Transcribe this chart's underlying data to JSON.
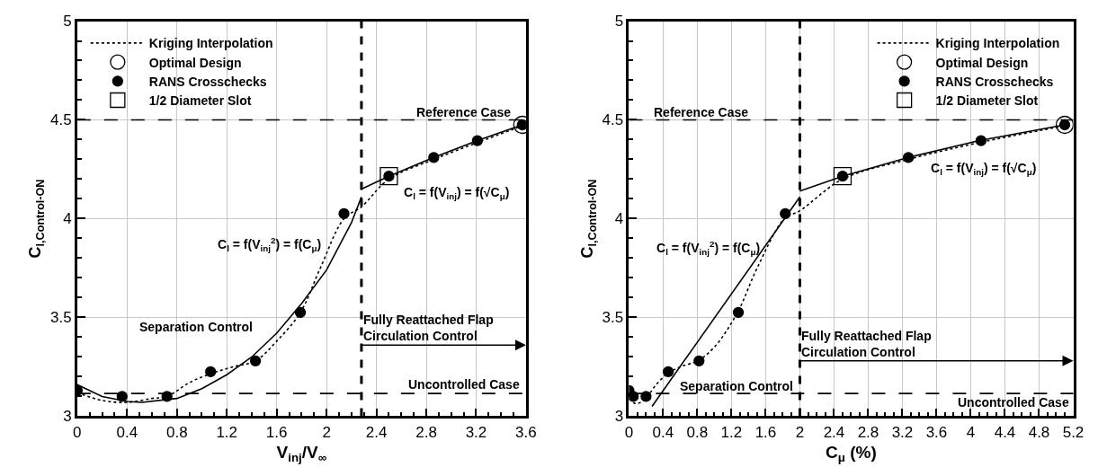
{
  "chart_data": [
    {
      "type": "line",
      "xlabel": "V$_{inj}$/V$_{∞}$",
      "ylabel": "C$_{l,Control-ON}$",
      "xlim": [
        0,
        3.6
      ],
      "xticks": [
        0,
        0.4,
        0.8,
        1.2,
        1.6,
        2,
        2.4,
        2.8,
        3.2,
        3.6
      ],
      "ylim": [
        3,
        5
      ],
      "yticks": [
        3,
        3.5,
        4,
        4.5,
        5
      ],
      "grid": true,
      "legend": "top left",
      "series": [
        {
          "name": "Kriging Interpolation",
          "line_style": "dotted",
          "color": "#000000",
          "x": [
            0,
            0.2,
            0.4,
            0.6,
            0.72,
            0.9,
            1.07,
            1.25,
            1.43,
            1.6,
            1.79,
            1.95,
            2.14,
            2.28,
            2.5,
            2.86,
            3.21,
            3.57
          ],
          "values": [
            3.12,
            3.08,
            3.07,
            3.09,
            3.1,
            3.17,
            3.215,
            3.25,
            3.28,
            3.38,
            3.525,
            3.75,
            4.0,
            4.06,
            4.2,
            4.3,
            4.385,
            4.47
          ]
        },
        {
          "name": "Optimal Design",
          "type": "scatter",
          "marker": "circle-open",
          "color": "#000000",
          "x": [
            3.57
          ],
          "values": [
            4.475
          ]
        },
        {
          "name": "RANS Crosschecks",
          "type": "scatter",
          "marker": "circle",
          "color": "#000000",
          "x": [
            0,
            0.36,
            0.72,
            1.07,
            1.43,
            1.79,
            2.14,
            2.5,
            2.86,
            3.21,
            3.57
          ],
          "values": [
            3.13,
            3.1,
            3.1,
            3.225,
            3.28,
            3.525,
            4.025,
            4.215,
            4.31,
            4.395,
            4.475
          ]
        },
        {
          "name": "1/2 Diameter Slot",
          "type": "scatter",
          "marker": "square-open",
          "color": "#000000",
          "x": [
            2.5
          ],
          "values": [
            4.215
          ]
        },
        {
          "line_style": "solid",
          "color": "#000000",
          "x": [
            0,
            0.2,
            0.4,
            0.52,
            0.8,
            1.0,
            1.2,
            1.4,
            1.6,
            1.8,
            2.0,
            2.2,
            2.28
          ],
          "values": [
            3.16,
            3.1,
            3.075,
            3.07,
            3.09,
            3.14,
            3.21,
            3.3,
            3.42,
            3.57,
            3.74,
            3.98,
            4.11
          ]
        },
        {
          "line_style": "solid",
          "color": "#000000",
          "x": [
            2.28,
            2.5,
            2.86,
            3.21,
            3.57
          ],
          "values": [
            4.15,
            4.215,
            4.31,
            4.395,
            4.475
          ]
        }
      ],
      "ref_lines": [
        {
          "axis": "y",
          "value": 4.5,
          "line_style": "dashed",
          "color": "#000000"
        },
        {
          "axis": "y",
          "value": 3.115,
          "line_style": "dashed",
          "color": "#000000"
        },
        {
          "axis": "x",
          "value": 2.28,
          "line_style": "dashed",
          "color": "#000000"
        }
      ],
      "annotations": [
        "Reference Case",
        "Uncontrolled Case",
        "Separation Control",
        "C$_{l}$ = f(V$_{inj}$$^{2}$) = f(C$_{μ}$)",
        "C$_{l}$ = f(V$_{inj}$) = f(√C$_{μ}$)",
        "Fully Reattached Flap\nCirculation Control"
      ]
    },
    {
      "type": "line",
      "xlabel": "C$_{μ}$ (%)",
      "ylabel": "C$_{l,Control-ON}$",
      "xlim": [
        0,
        5.2
      ],
      "xticks": [
        0,
        0.4,
        0.8,
        1.2,
        1.6,
        2,
        2.4,
        2.8,
        3.2,
        3.6,
        4,
        4.4,
        4.8,
        5.2
      ],
      "ylim": [
        3,
        5
      ],
      "yticks": [
        3,
        3.5,
        4,
        4.5,
        5
      ],
      "grid": true,
      "legend": "top right",
      "series": [
        {
          "name": "Kriging Interpolation",
          "line_style": "dotted",
          "color": "#000000",
          "x": [
            0,
            0.05,
            0.1,
            0.2,
            0.3,
            0.45,
            0.6,
            0.8,
            1.0,
            1.27,
            1.5,
            1.82,
            2.0,
            2.5,
            3.27,
            4.1,
            5.1
          ],
          "values": [
            3.12,
            3.07,
            3.065,
            3.09,
            3.15,
            3.215,
            3.25,
            3.28,
            3.35,
            3.525,
            3.75,
            4.0,
            4.04,
            4.2,
            4.3,
            4.385,
            4.47
          ]
        },
        {
          "name": "Optimal Design",
          "type": "scatter",
          "marker": "circle-open",
          "color": "#000000",
          "x": [
            5.1
          ],
          "values": [
            4.475
          ]
        },
        {
          "name": "RANS Crosschecks",
          "type": "scatter",
          "marker": "circle",
          "color": "#000000",
          "x": [
            0,
            0.05,
            0.2,
            0.46,
            0.82,
            1.28,
            1.83,
            2.5,
            3.27,
            4.12,
            5.1
          ],
          "values": [
            3.13,
            3.1,
            3.1,
            3.225,
            3.28,
            3.525,
            4.025,
            4.215,
            4.31,
            4.395,
            4.475
          ]
        },
        {
          "name": "1/2 Diameter Slot",
          "type": "scatter",
          "marker": "square-open",
          "color": "#000000",
          "x": [
            2.5
          ],
          "values": [
            4.215
          ]
        },
        {
          "line_style": "solid",
          "color": "#000000",
          "x": [
            0.27,
            2.0
          ],
          "values": [
            3.05,
            4.11
          ]
        },
        {
          "line_style": "solid",
          "color": "#000000",
          "x": [
            2.0,
            2.5,
            3.27,
            4.1,
            5.1
          ],
          "values": [
            4.14,
            4.215,
            4.31,
            4.395,
            4.475
          ]
        }
      ],
      "ref_lines": [
        {
          "axis": "y",
          "value": 4.5,
          "line_style": "dashed",
          "color": "#000000"
        },
        {
          "axis": "y",
          "value": 3.115,
          "line_style": "dashed",
          "color": "#000000"
        },
        {
          "axis": "x",
          "value": 2.0,
          "line_style": "dashed",
          "color": "#000000"
        }
      ],
      "annotations": [
        "Reference Case",
        "Uncontrolled Case",
        "Separation Control",
        "C$_{l}$ = f(V$_{inj}$$^{2}$) = f(C$_{μ}$)",
        "C$_{l}$ = f(V$_{inj}$) = f(√C$_{μ}$)",
        "Fully Reattached Flap\nCirculation Control"
      ]
    }
  ]
}
